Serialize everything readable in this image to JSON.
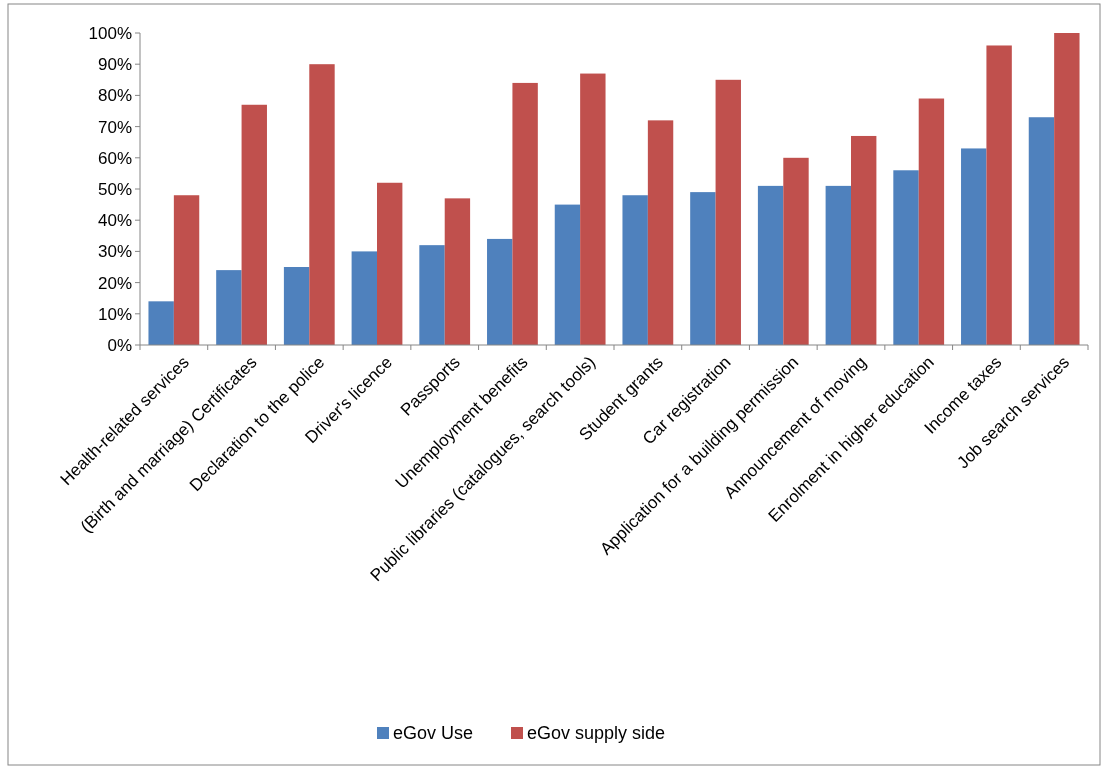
{
  "chart_data": {
    "type": "bar",
    "categories": [
      "Health-related services",
      "(Birth and marriage) Certificates",
      "Declaration to the police",
      "Driver's licence",
      "Passports",
      "Unemployment benefits",
      "Public libraries (catalogues, search tools)",
      "Student grants",
      "Car registration",
      "Application for a building permission",
      "Announcement of moving",
      "Enrolment in higher education",
      "Income taxes",
      "Job search services"
    ],
    "series": [
      {
        "name": "eGov Use",
        "color": "#4f81bd",
        "values": [
          14,
          24,
          25,
          30,
          32,
          34,
          45,
          48,
          49,
          51,
          51,
          56,
          63,
          73
        ]
      },
      {
        "name": "eGov supply side",
        "color": "#c0504d",
        "values": [
          48,
          77,
          90,
          52,
          47,
          84,
          87,
          72,
          85,
          60,
          67,
          79,
          96,
          100
        ]
      }
    ],
    "ylim": [
      0,
      100
    ],
    "yticks": [
      {
        "value": 0,
        "label": "0%"
      },
      {
        "value": 10,
        "label": "10%"
      },
      {
        "value": 20,
        "label": "20%"
      },
      {
        "value": 30,
        "label": "30%"
      },
      {
        "value": 40,
        "label": "40%"
      },
      {
        "value": 50,
        "label": "50%"
      },
      {
        "value": 60,
        "label": "60%"
      },
      {
        "value": 70,
        "label": "70%"
      },
      {
        "value": 80,
        "label": "80%"
      },
      {
        "value": 90,
        "label": "90%"
      },
      {
        "value": 100,
        "label": "100%"
      }
    ],
    "grid": false,
    "legend": "bottom"
  }
}
